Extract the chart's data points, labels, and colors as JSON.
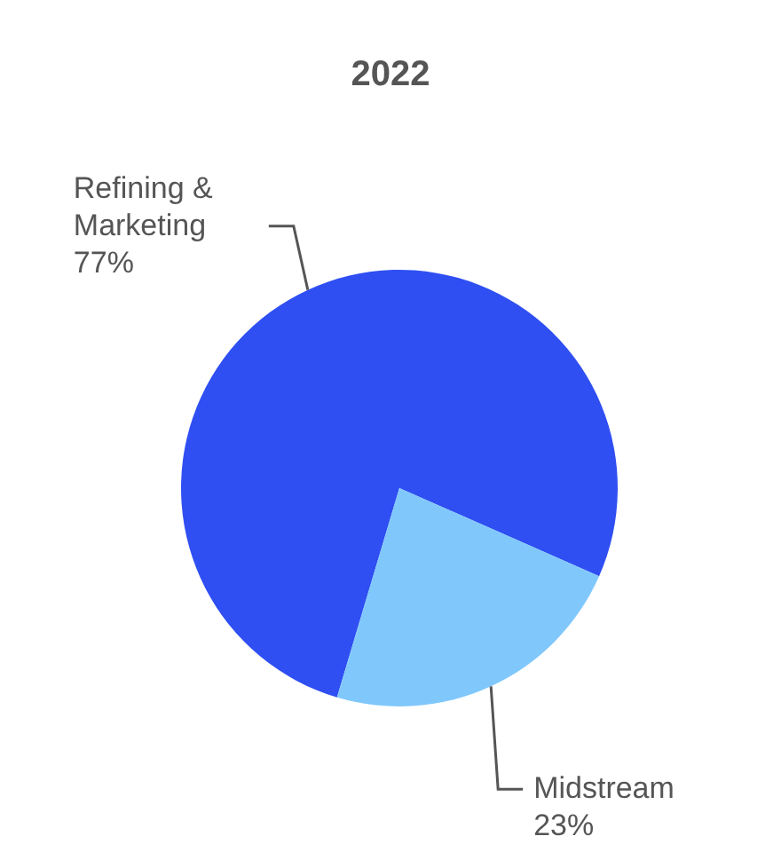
{
  "chart_data": {
    "type": "pie",
    "title": "2022",
    "categories": [
      "Refining & Marketing",
      "Midstream"
    ],
    "values": [
      77,
      23
    ],
    "value_labels": [
      "77%",
      "23%"
    ],
    "colors": [
      "#2f4ff2",
      "#80c8fc"
    ]
  }
}
